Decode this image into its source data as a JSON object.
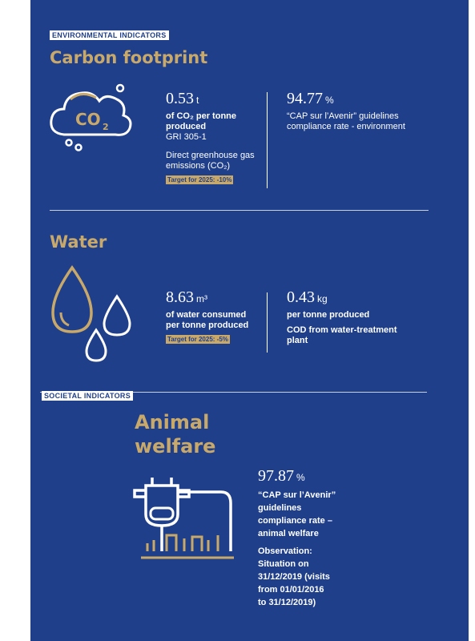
{
  "environmental": {
    "label": "ENVIRONMENTAL INDICATORS",
    "carbon": {
      "title": "Carbon footprint",
      "icon_main": "CO",
      "icon_sub": "2",
      "metric1": {
        "value": "0.53",
        "unit": "t",
        "description": "of CO₂ per tonne produced",
        "code": "GRI 305-1",
        "detail": "Direct greenhouse gas emissions (CO₂)",
        "target": "Target for 2025: -10%"
      },
      "metric2": {
        "value": "94.77",
        "unit": "%",
        "description": "“CAP sur l’Avenir” guidelines compliance rate - environment"
      }
    },
    "water": {
      "title": "Water",
      "metric1": {
        "value": "8.63",
        "unit": "m³",
        "description": "of water consumed per tonne produced",
        "target": "Target for 2025: -5%"
      },
      "metric2": {
        "value": "0.43",
        "unit": "kg",
        "description": "per tonne produced",
        "detail": "COD from water-treatment plant"
      }
    }
  },
  "societal": {
    "label": "SOCIETAL INDICATORS",
    "animal": {
      "title": "Animal welfare",
      "metric": {
        "value": "97.87",
        "unit": "%",
        "description": "“CAP sur l’Avenir” guidelines compliance rate – animal welfare",
        "observation_label": "Observation:",
        "observation": "Situation on 31/12/2019 (visits from 01/01/2016 to 31/12/2019)"
      }
    }
  }
}
